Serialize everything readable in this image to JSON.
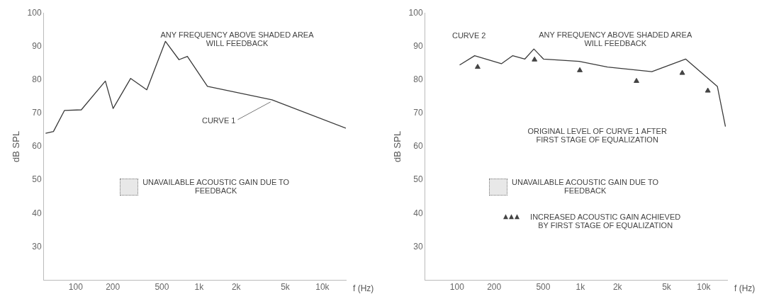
{
  "chart_data": [
    {
      "type": "line",
      "xlabel": "f (Hz)",
      "ylabel": "dB SPL",
      "log": "x",
      "grid": false,
      "legend": false,
      "xlim": [
        55,
        15500
      ],
      "xticks": [
        100,
        200,
        500,
        {
          "value": 1000,
          "label": "1k"
        },
        {
          "value": 2000,
          "label": "2k"
        },
        {
          "value": 5000,
          "label": "5k"
        },
        {
          "value": 10000,
          "label": "10k"
        }
      ],
      "ylim": [
        20,
        100
      ],
      "yticks": [
        30,
        40,
        50,
        60,
        70,
        80,
        90,
        100
      ],
      "series": [
        {
          "name": "CURVE 1",
          "marker": "none",
          "color": "#3a3a3a",
          "x": [
            57,
            66,
            81,
            111,
            174,
            201,
            279,
            377,
            534,
            688,
            804,
            1170,
            3900,
            15500
          ],
          "values": [
            64,
            64.5,
            70.8,
            71,
            79.6,
            71.4,
            80.4,
            77,
            91.5,
            86,
            87,
            78,
            74,
            65.5
          ]
        }
      ],
      "annotations": [
        "ANY FREQUENCY ABOVE SHADED AREA WILL FEEDBACK",
        "UNAVAILABLE ACOUSTIC GAIN DUE TO FEEDBACK"
      ]
    },
    {
      "type": "line",
      "xlabel": "f (Hz)",
      "ylabel": "dB SPL",
      "log": "x",
      "grid": false,
      "legend": "center",
      "xlim": [
        55,
        15500
      ],
      "xticks": [
        100,
        200,
        500,
        {
          "value": 1000,
          "label": "1k"
        },
        {
          "value": 2000,
          "label": "2k"
        },
        {
          "value": 5000,
          "label": "5k"
        },
        {
          "value": 10000,
          "label": "10k"
        }
      ],
      "ylim": [
        20,
        100
      ],
      "yticks": [
        30,
        40,
        50,
        60,
        70,
        80,
        90,
        100
      ],
      "series": [
        {
          "name": "CURVE 2",
          "marker": "none",
          "color": "#3a3a3a",
          "x": [
            105,
            139,
            229,
            283,
            355,
            420,
            502,
            980,
            1660,
            3800,
            7130,
            12900,
            15000
          ],
          "values": [
            84.4,
            87.2,
            84.8,
            87.2,
            86.2,
            89.2,
            86.2,
            85.5,
            83.8,
            82.4,
            86.2,
            78,
            66
          ]
        },
        {
          "name": "INCREASED ACOUSTIC GAIN ACHIEVED BY FIRST STAGE OF EQUALIZATION",
          "type": "scatter",
          "marker": "triangle",
          "color": "#444444",
          "x": [
            147,
            425,
            990,
            2850,
            6700,
            10800
          ],
          "values": [
            83.8,
            86,
            82.8,
            79.6,
            82,
            76.7
          ]
        }
      ],
      "annotations": [
        "ANY FREQUENCY ABOVE SHADED AREA WILL FEEDBACK",
        "ORIGINAL LEVEL OF CURVE 1 AFTER FIRST STAGE OF EQUALIZATION",
        "UNAVAILABLE ACOUSTIC GAIN DUE TO FEEDBACK"
      ]
    }
  ]
}
